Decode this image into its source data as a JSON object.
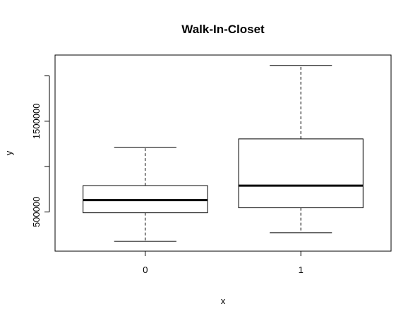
{
  "chart_data": {
    "type": "box",
    "title": "Walk-In-Closet",
    "xlabel": "x",
    "ylabel": "y",
    "categories": [
      "0",
      "1"
    ],
    "boxes": [
      {
        "category": "0",
        "whisker_low": 175000,
        "q1": 490000,
        "median": 630000,
        "q3": 790000,
        "whisker_high": 1210000
      },
      {
        "category": "1",
        "whisker_low": 270000,
        "q1": 545000,
        "median": 790000,
        "q3": 1305000,
        "whisker_high": 2115000
      }
    ],
    "y_ticks": [
      500000,
      1000000,
      1500000,
      2000000
    ],
    "y_tick_labels": [
      "500000",
      "",
      "1500000",
      ""
    ],
    "ylim": [
      67000,
      2230000
    ],
    "grid": false,
    "legend": "none"
  }
}
